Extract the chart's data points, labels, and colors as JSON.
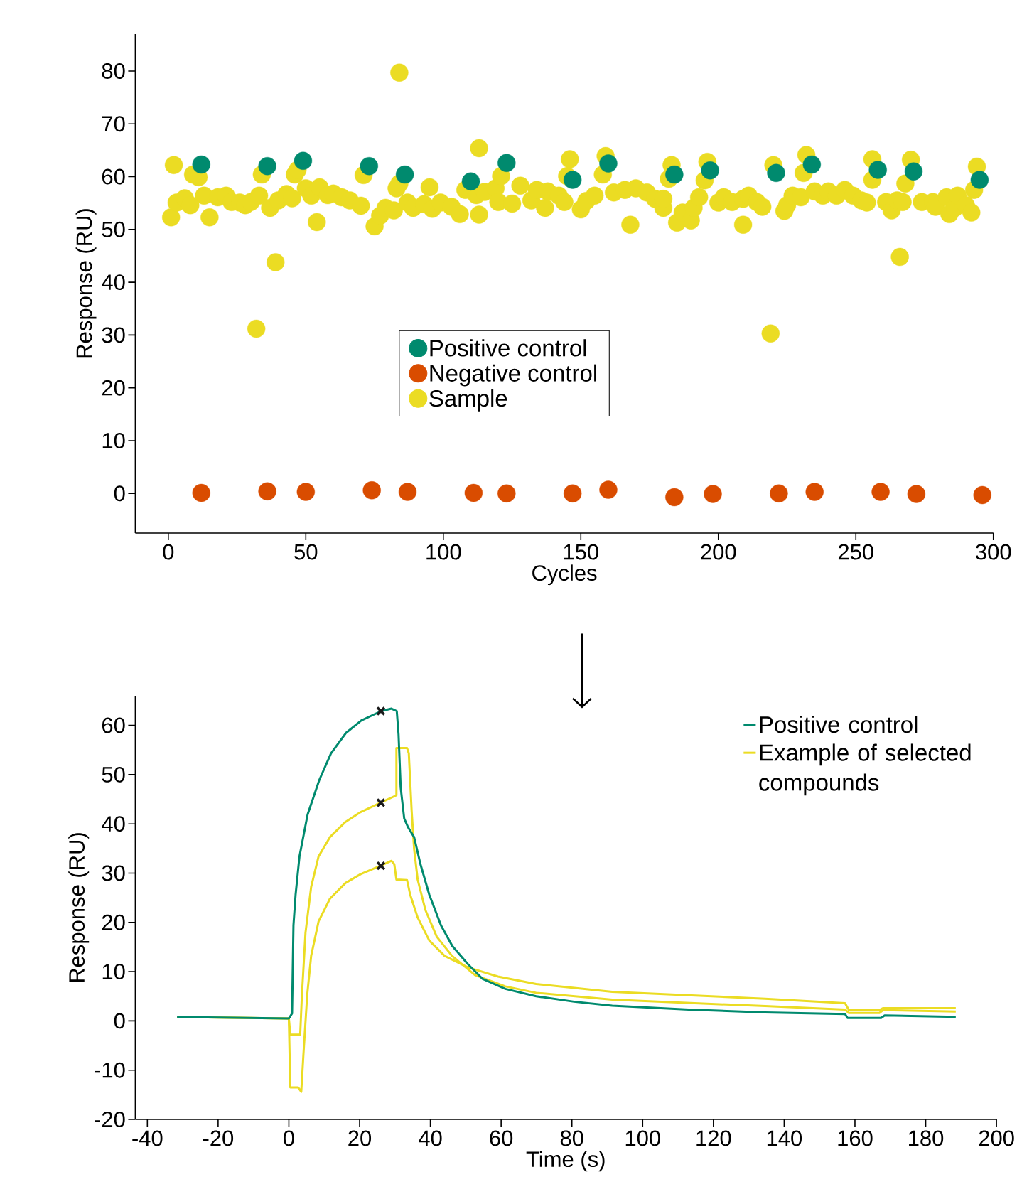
{
  "chart_data": [
    {
      "type": "scatter",
      "xlabel": "Cycles",
      "ylabel": "Response (RU)",
      "xlim": [
        -12,
        300
      ],
      "xticks": [
        0,
        50,
        100,
        150,
        200,
        250,
        300
      ],
      "ylim": [
        -7.5,
        87
      ],
      "yticks": [
        0,
        10,
        20,
        30,
        40,
        50,
        60,
        70,
        80
      ],
      "legend": "center",
      "marker": "circle",
      "series": [
        {
          "name": "Positive control",
          "color": "#008a6e",
          "x": [
            12,
            36,
            49,
            73,
            86,
            110,
            123,
            147,
            160,
            184,
            197,
            221,
            234,
            258,
            271,
            295
          ],
          "values": [
            62.3,
            62.0,
            63.0,
            62.0,
            60.4,
            59.1,
            62.6,
            59.4,
            62.5,
            60.4,
            61.2,
            60.7,
            62.3,
            61.3,
            61.0,
            59.4
          ]
        },
        {
          "name": "Negative control",
          "color": "#d94c00",
          "x": [
            12,
            36,
            50,
            74,
            87,
            111,
            123,
            147,
            160,
            184,
            198,
            222,
            235,
            259,
            272,
            296
          ],
          "values": [
            0.1,
            0.4,
            0.3,
            0.6,
            0.3,
            0.1,
            0,
            0,
            0.7,
            -0.7,
            -0.1,
            0,
            0.3,
            0.3,
            -0.1,
            -0.3
          ]
        },
        {
          "name": "Sample",
          "color": "#ebdc23",
          "x": [
            1,
            2,
            3,
            6,
            8,
            9,
            11,
            13,
            15,
            18,
            21,
            23,
            26,
            28,
            30,
            32,
            33,
            34,
            37,
            39,
            40,
            43,
            45,
            46,
            47,
            50,
            52,
            54,
            55,
            58,
            60,
            63,
            66,
            70,
            71,
            75,
            77,
            79,
            82,
            83,
            84,
            84,
            87,
            89,
            93,
            95,
            96,
            99,
            103,
            106,
            108,
            112,
            113,
            113,
            115,
            119,
            120,
            121,
            125,
            128,
            132,
            134,
            137,
            138,
            142,
            144,
            146,
            145,
            150,
            152,
            155,
            158,
            159,
            162,
            166,
            168,
            170,
            174,
            177,
            180,
            180,
            182,
            183,
            185,
            187,
            190,
            191,
            193,
            195,
            196,
            200,
            202,
            205,
            209,
            209,
            211,
            214,
            216,
            219,
            220,
            224,
            225,
            227,
            230,
            231,
            232,
            235,
            238,
            240,
            243,
            246,
            249,
            252,
            254,
            256,
            256,
            261,
            263,
            265,
            266,
            267,
            268,
            270,
            274,
            278,
            279,
            283,
            284,
            286,
            287,
            290,
            292,
            293,
            294
          ],
          "values": [
            52.3,
            62.2,
            55.1,
            55.9,
            54.6,
            60.4,
            59.9,
            56.4,
            52.3,
            56.1,
            56.4,
            55.2,
            55.1,
            54.6,
            55.2,
            31.2,
            56.4,
            60.4,
            54.1,
            43.8,
            55.5,
            56.7,
            55.9,
            60.4,
            61.3,
            57.8,
            56.4,
            51.4,
            58.0,
            56.5,
            56.8,
            56.1,
            55.5,
            54.5,
            60.3,
            50.6,
            52.6,
            54.1,
            53.6,
            57.8,
            79.7,
            58.7,
            55.1,
            54.1,
            54.8,
            58.0,
            53.9,
            55.1,
            54.3,
            52.9,
            57.5,
            56.5,
            52.8,
            65.4,
            57.1,
            57.8,
            55.2,
            60.1,
            54.9,
            58.3,
            55.5,
            57.5,
            54.1,
            57.2,
            56.4,
            55.2,
            63.3,
            60.1,
            53.8,
            55.4,
            56.4,
            60.4,
            63.9,
            57.0,
            57.5,
            50.9,
            57.8,
            57.0,
            55.8,
            54.1,
            55.8,
            59.6,
            62.2,
            51.3,
            53.2,
            51.7,
            54.1,
            56.1,
            59.3,
            62.8,
            55.1,
            56.1,
            55.2,
            50.9,
            55.8,
            56.4,
            55.2,
            54.3,
            30.3,
            62.2,
            53.5,
            54.6,
            56.4,
            56.1,
            60.7,
            64.1,
            57.2,
            56.4,
            57.2,
            56.4,
            57.5,
            56.4,
            55.5,
            55.1,
            59.4,
            63.3,
            55.2,
            53.6,
            55.5,
            44.8,
            55.2,
            58.7,
            63.2,
            55.2,
            55.2,
            54.3,
            56.1,
            52.9,
            54.1,
            56.4,
            54.6,
            53.2,
            57.5,
            61.9
          ]
        }
      ]
    },
    {
      "type": "line",
      "xlabel": "Time (s)",
      "ylabel": "Response (RU)",
      "xlim": [
        -43.4,
        200
      ],
      "xticks": [
        -40,
        -20,
        0,
        20,
        40,
        60,
        80,
        100,
        120,
        140,
        160,
        180,
        200
      ],
      "ylim": [
        -20,
        66
      ],
      "yticks": [
        -20,
        -10,
        0,
        10,
        20,
        30,
        40,
        50,
        60
      ],
      "legend": "top right",
      "series": [
        {
          "name": "Positive control",
          "color": "#008a6e",
          "x": [
            -31.6,
            0,
            0.9,
            1.3,
            1.9,
            3,
            5.3,
            8.6,
            11.9,
            16.2,
            20.5,
            26.1,
            29,
            30.5,
            31,
            31.6,
            32.6,
            33.7,
            35.4,
            37.2,
            39.7,
            43,
            46.2,
            50.5,
            54.8,
            61.2,
            69.9,
            80.6,
            91.4,
            113,
            134.6,
            157.2,
            157.9,
            167.4,
            168.4,
            188.5
          ],
          "values": [
            0.8,
            0.5,
            1.5,
            19.4,
            25.6,
            33.4,
            41.9,
            48.9,
            54.3,
            58.5,
            61,
            62.9,
            63.4,
            62.9,
            58.2,
            47.4,
            41.1,
            39.3,
            37.3,
            31.8,
            25.6,
            19.4,
            15.2,
            11.6,
            8.5,
            6.5,
            5,
            3.9,
            3.1,
            2.3,
            1.7,
            1.4,
            0.6,
            0.6,
            1.1,
            0.8
          ]
        },
        {
          "name": "Example of selected compounds",
          "color": "#ebdc23",
          "x": [
            -31.6,
            0,
            0.4,
            3.2,
            3.7,
            4.7,
            6.3,
            8.4,
            11.6,
            16,
            20.3,
            25.9,
            30.4,
            30.4,
            33.4,
            33.9,
            34.7,
            35.4,
            36.4,
            38.6,
            41.8,
            46.1,
            52.6,
            61.2,
            69.9,
            91.4,
            134.6,
            157.2,
            158.3,
            166.9,
            168,
            188.5
          ],
          "values": [
            0.8,
            0.5,
            -2.8,
            -2.8,
            5.4,
            17.9,
            27.2,
            33.4,
            37.3,
            40.4,
            42.4,
            44.3,
            45.8,
            55.4,
            55.4,
            54.3,
            42.7,
            34.9,
            28.7,
            22.5,
            17.1,
            13.2,
            9.3,
            7,
            5.7,
            4.3,
            3,
            2.3,
            1.6,
            1.6,
            2.2,
            1.9
          ]
        },
        {
          "color": "#ebdc23",
          "x": [
            -31.6,
            0,
            0.4,
            2.6,
            3.5,
            4.1,
            5.2,
            6.3,
            8.4,
            11.6,
            16,
            20.3,
            25.9,
            29,
            29.8,
            30.4,
            33.4,
            34.3,
            36.4,
            39.7,
            44,
            50.5,
            59.1,
            69.9,
            91.4,
            134.6,
            157.2,
            158.3,
            166.9,
            168,
            188.5
          ],
          "values": [
            0.8,
            0.5,
            -13.5,
            -13.5,
            -14.4,
            -7,
            5.4,
            13.2,
            20.2,
            24.8,
            28,
            29.8,
            31.5,
            32.5,
            31.8,
            28.7,
            28.6,
            25.6,
            21,
            16.3,
            13.2,
            10.9,
            9,
            7.5,
            5.9,
            4.5,
            3.6,
            2.2,
            2.2,
            2.6,
            2.6
          ]
        },
        {
          "type": "scatter",
          "marker": "cross",
          "color": "#1a1a1a",
          "x": [
            26,
            26,
            26
          ],
          "values": [
            62.9,
            44.3,
            31.5
          ]
        }
      ]
    }
  ]
}
